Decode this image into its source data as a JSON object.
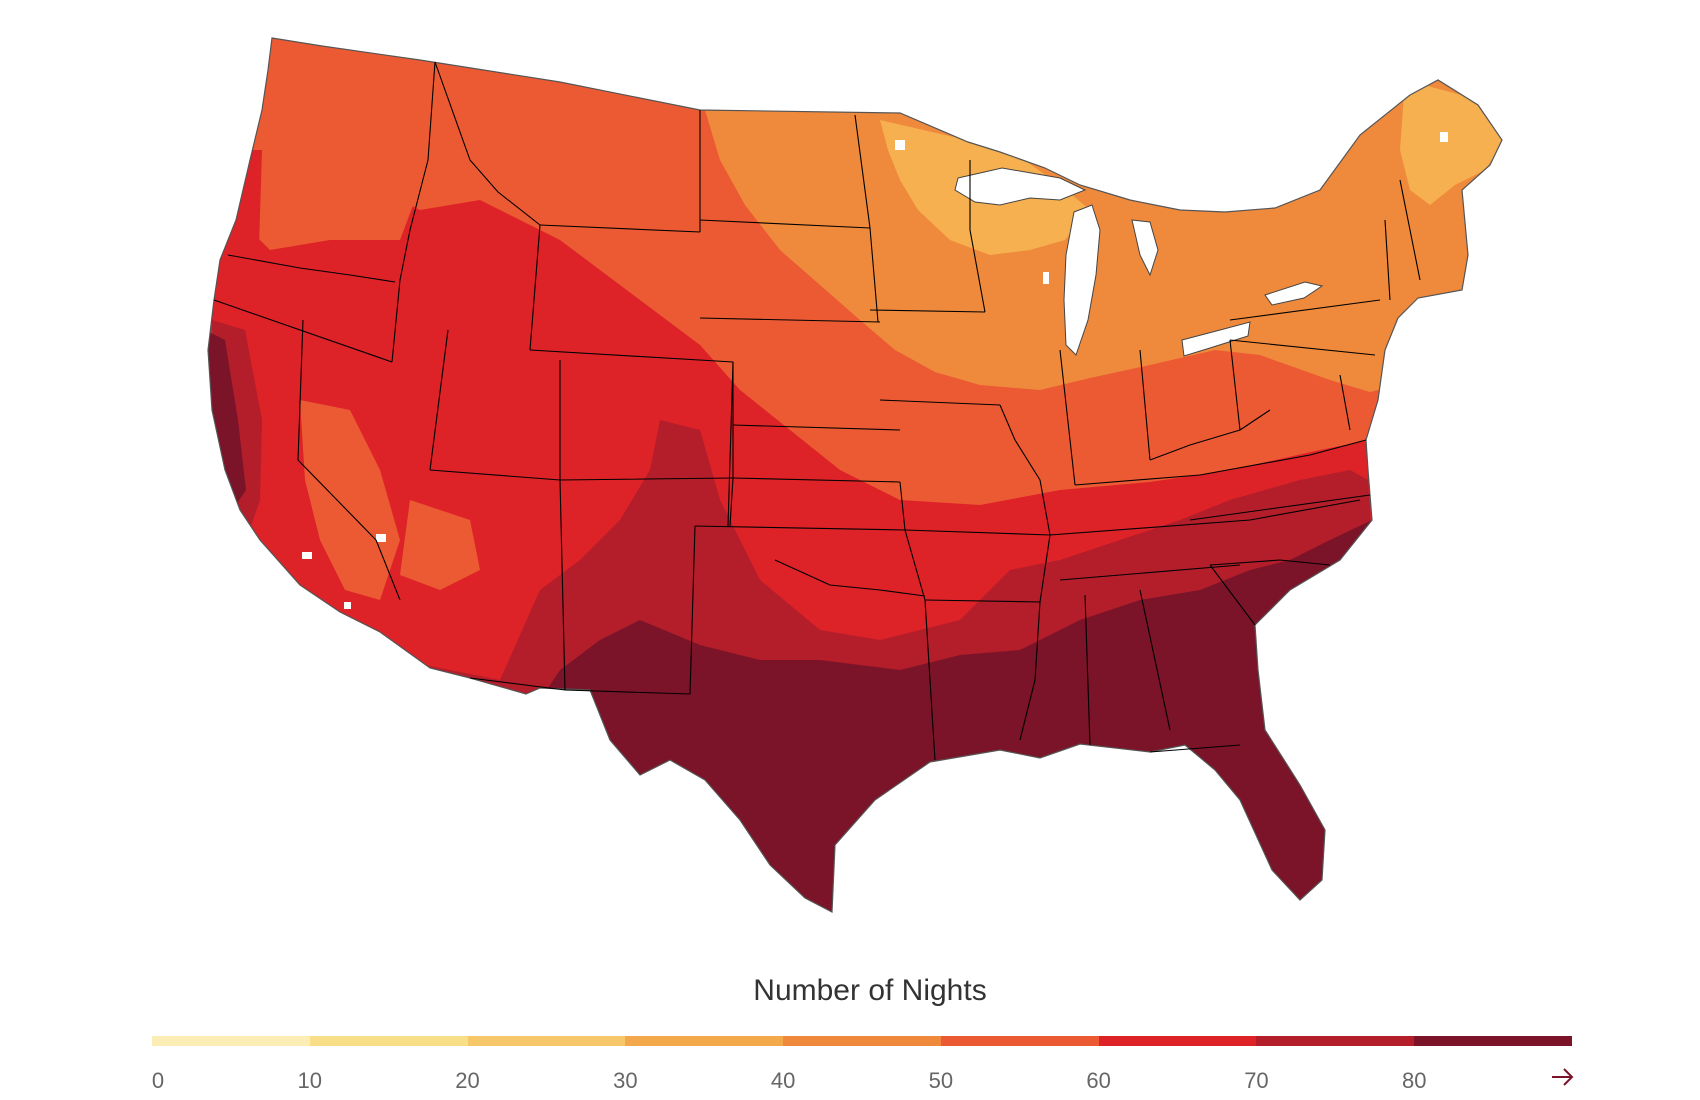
{
  "legend": {
    "title": "Number of Nights",
    "ticks": [
      "0",
      "10",
      "20",
      "30",
      "40",
      "50",
      "60",
      "70",
      "80"
    ],
    "bins": [
      {
        "range": "0-10",
        "color": "#FBEDB5"
      },
      {
        "range": "10-20",
        "color": "#F8DE86"
      },
      {
        "range": "20-30",
        "color": "#F6C86A"
      },
      {
        "range": "30-40",
        "color": "#F3A94B"
      },
      {
        "range": "40-50",
        "color": "#EF8A3D"
      },
      {
        "range": "50-60",
        "color": "#EC5A33"
      },
      {
        "range": "60-70",
        "color": "#DD2228"
      },
      {
        "range": "70-80",
        "color": "#B31E2A"
      },
      {
        "range": "80+",
        "color": "#7B1428"
      }
    ],
    "open_end_icon": "right-arrow-icon"
  },
  "map": {
    "region": "Contiguous United States",
    "value_scale": "nights per year",
    "zones": [
      {
        "area": "Northern Maine, northern Minnesota, northern Wisconsin",
        "bin": "30-40"
      },
      {
        "area": "Upper Midwest, Northeast, Great Lakes, Dakotas",
        "bin": "40-50"
      },
      {
        "area": "Pacific Northwest, Montana, Iowa, Missouri, Ohio Valley",
        "bin": "50-60"
      },
      {
        "area": "Great Basin, Rockies, Kansas, Virginia, Tennessee",
        "bin": "60-70"
      },
      {
        "area": "Southwest deserts, Oklahoma, Carolinas",
        "bin": "70-80"
      },
      {
        "area": "Gulf Coast, Texas, Florida, Deep South, southern California coast",
        "bin": "80+"
      }
    ],
    "colors": {
      "background": "#FFFFFF",
      "state_borders": "#000000",
      "arrow": "#7B1428"
    }
  }
}
